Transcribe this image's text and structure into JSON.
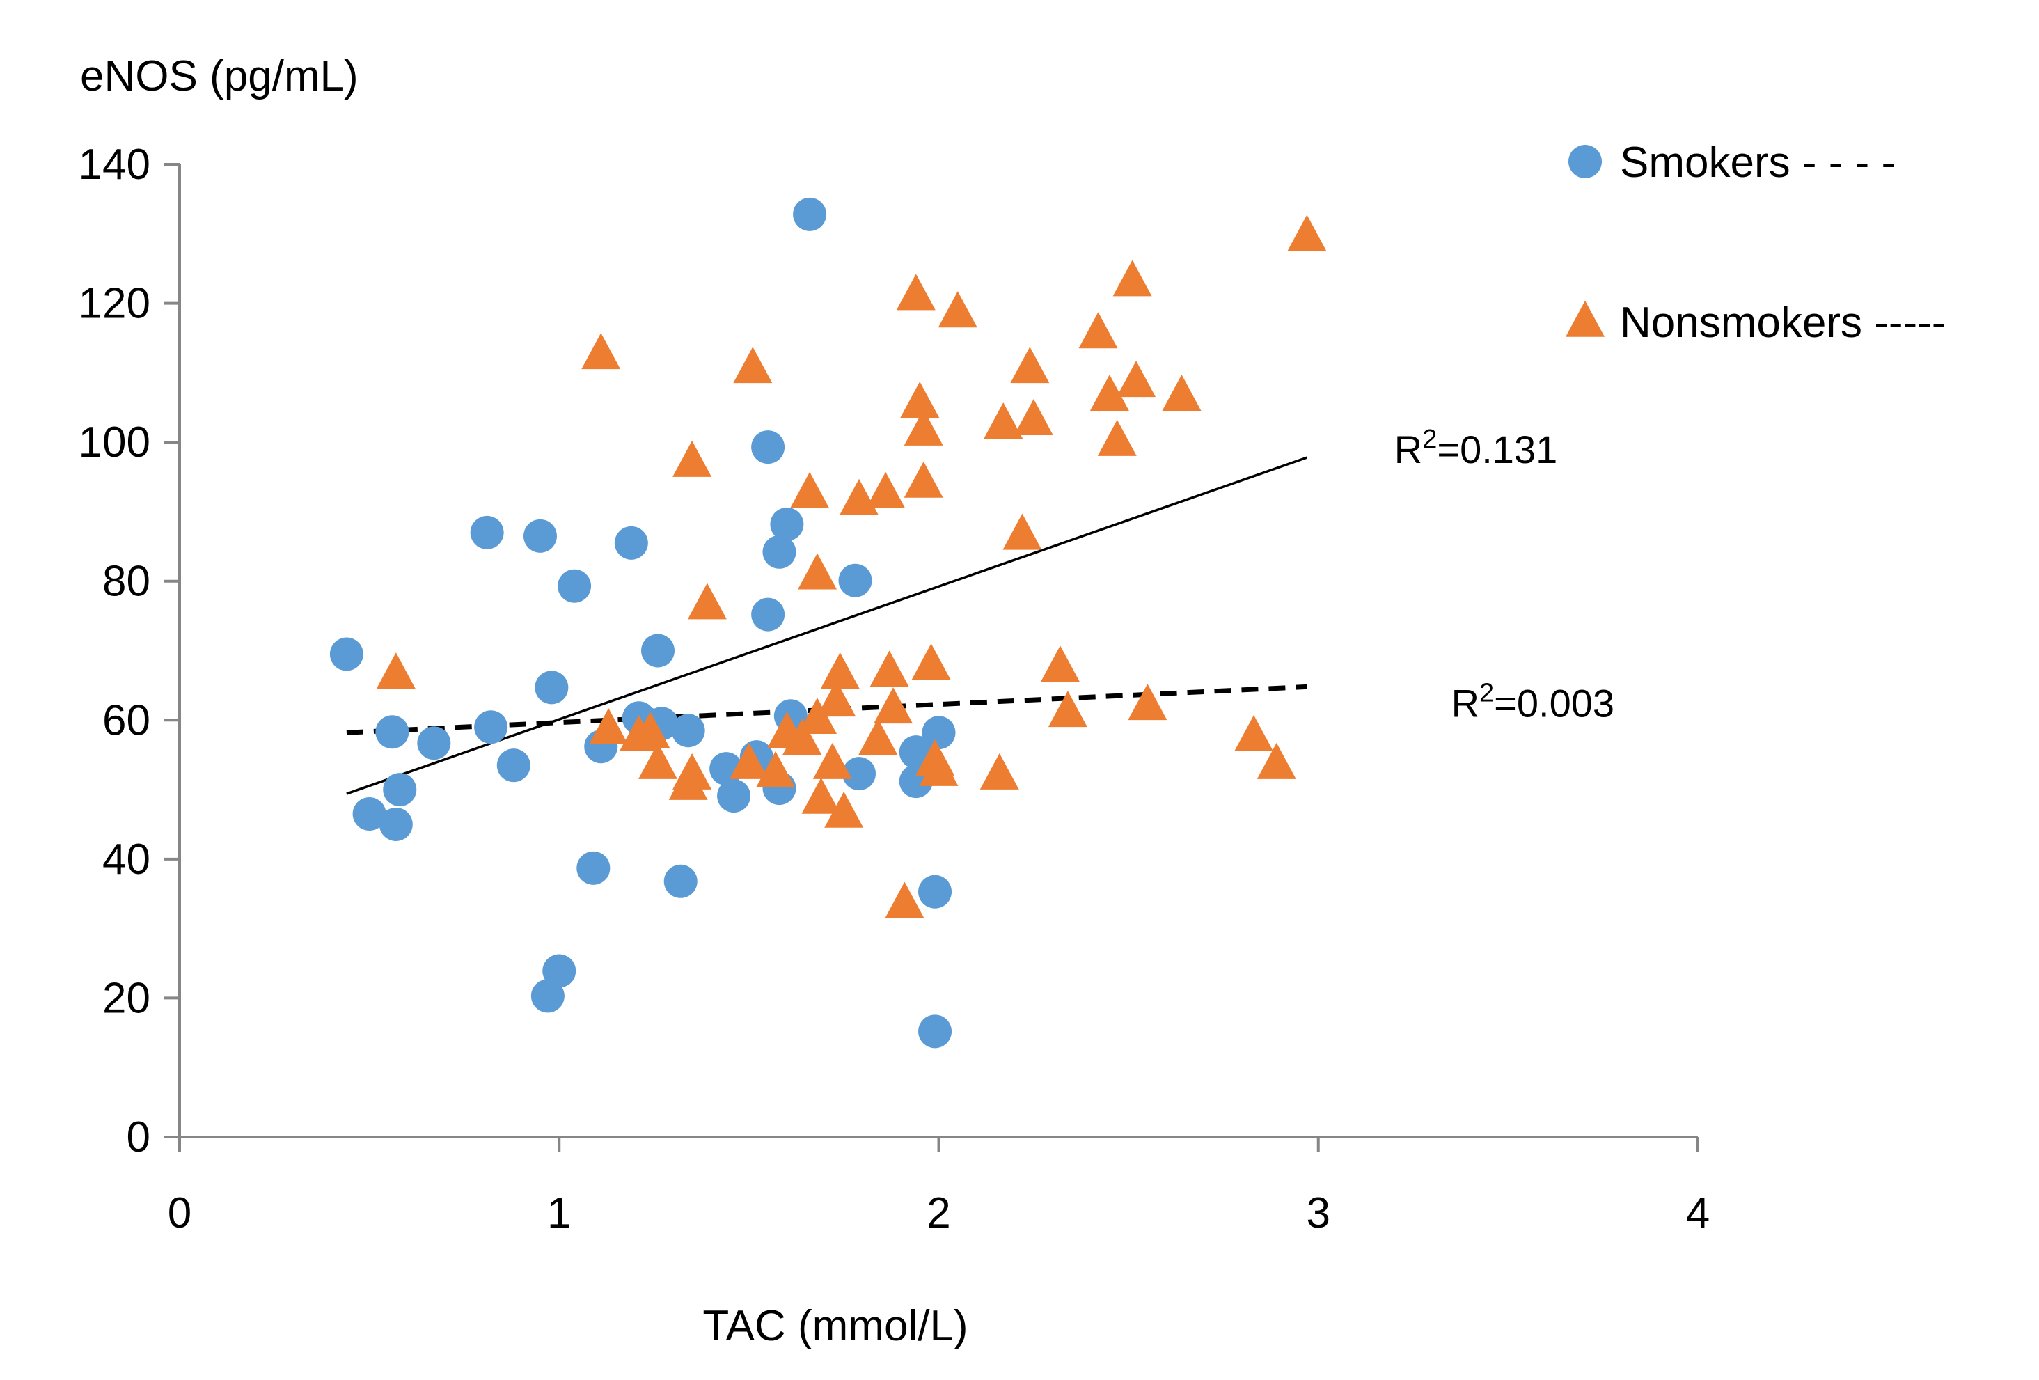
{
  "chart_data": {
    "type": "scatter",
    "title": "",
    "ylabel": "eNOS (pg/mL)",
    "xlabel": "TAC (mmol/L)",
    "xlim": [
      0,
      4
    ],
    "ylim": [
      0,
      140
    ],
    "x_ticks": [
      "0",
      "1",
      "2",
      "3",
      "4"
    ],
    "y_ticks": [
      "0",
      "20",
      "40",
      "60",
      "80",
      "100",
      "120",
      "140"
    ],
    "grid": false,
    "legend_position": "top-right",
    "series": [
      {
        "name": "Smokers",
        "legend_label": "Smokers - - - -",
        "marker": "circle",
        "color": "#5B9BD5",
        "points": [
          [
            0.44,
            69.5
          ],
          [
            0.5,
            46.5
          ],
          [
            0.56,
            58.3
          ],
          [
            0.57,
            45
          ],
          [
            0.58,
            50
          ],
          [
            0.67,
            56.7
          ],
          [
            0.81,
            87
          ],
          [
            0.82,
            59
          ],
          [
            0.88,
            53.5
          ],
          [
            0.95,
            86.5
          ],
          [
            0.97,
            20.3
          ],
          [
            0.98,
            64.7
          ],
          [
            1.0,
            23.9
          ],
          [
            1.04,
            79.3
          ],
          [
            1.09,
            38.7
          ],
          [
            1.11,
            56.2
          ],
          [
            1.19,
            85.5
          ],
          [
            1.21,
            60.3
          ],
          [
            1.23,
            59.5
          ],
          [
            1.26,
            70
          ],
          [
            1.27,
            59.5
          ],
          [
            1.32,
            36.8
          ],
          [
            1.34,
            58.5
          ],
          [
            1.44,
            53
          ],
          [
            1.46,
            49.1
          ],
          [
            1.52,
            54.7
          ],
          [
            1.55,
            75.2
          ],
          [
            1.55,
            99.3
          ],
          [
            1.58,
            50.2
          ],
          [
            1.58,
            84.2
          ],
          [
            1.6,
            88.2
          ],
          [
            1.61,
            60.6
          ],
          [
            1.66,
            132.8
          ],
          [
            1.78,
            80.1
          ],
          [
            1.79,
            52.3
          ],
          [
            1.94,
            55.4
          ],
          [
            1.94,
            51.2
          ],
          [
            1.99,
            35.3
          ],
          [
            1.99,
            15.2
          ],
          [
            2.0,
            58.2
          ]
        ]
      },
      {
        "name": "Nonsmokers",
        "legend_label": "Nonsmokers -----",
        "marker": "triangle",
        "color": "#ED7D31",
        "points": [
          [
            0.57,
            66.5
          ],
          [
            1.11,
            112.5
          ],
          [
            1.13,
            58.5
          ],
          [
            1.21,
            57.5
          ],
          [
            1.24,
            58
          ],
          [
            1.26,
            53.5
          ],
          [
            1.34,
            50.5
          ],
          [
            1.35,
            52
          ],
          [
            1.35,
            97
          ],
          [
            1.39,
            76.5
          ],
          [
            1.5,
            53.5
          ],
          [
            1.51,
            110.5
          ],
          [
            1.57,
            52.3
          ],
          [
            1.6,
            58
          ],
          [
            1.64,
            57
          ],
          [
            1.66,
            92.5
          ],
          [
            1.68,
            80.8
          ],
          [
            1.68,
            60
          ],
          [
            1.69,
            48.5
          ],
          [
            1.72,
            53.5
          ],
          [
            1.73,
            62.5
          ],
          [
            1.74,
            66.5
          ],
          [
            1.75,
            46.5
          ],
          [
            1.79,
            91.5
          ],
          [
            1.84,
            57
          ],
          [
            1.86,
            92.5
          ],
          [
            1.87,
            66.8
          ],
          [
            1.88,
            61.5
          ],
          [
            1.91,
            33.5
          ],
          [
            1.94,
            121
          ],
          [
            1.95,
            105.5
          ],
          [
            1.96,
            101.5
          ],
          [
            1.96,
            94
          ],
          [
            1.98,
            67.8
          ],
          [
            1.99,
            54
          ],
          [
            2.0,
            52.5
          ],
          [
            2.05,
            118.5
          ],
          [
            2.16,
            52
          ],
          [
            2.17,
            102.5
          ],
          [
            2.22,
            86.5
          ],
          [
            2.24,
            110.5
          ],
          [
            2.25,
            103
          ],
          [
            2.32,
            67.5
          ],
          [
            2.34,
            61
          ],
          [
            2.42,
            115.5
          ],
          [
            2.45,
            106.5
          ],
          [
            2.47,
            100
          ],
          [
            2.51,
            123
          ],
          [
            2.52,
            108.5
          ],
          [
            2.55,
            62
          ],
          [
            2.64,
            106.5
          ],
          [
            2.83,
            57.5
          ],
          [
            2.89,
            53.5
          ],
          [
            2.97,
            129.5
          ]
        ]
      }
    ],
    "trendlines": [
      {
        "name": "solid-trendline",
        "style": "solid",
        "x": [
          0.44,
          2.97
        ],
        "y": [
          49.4,
          97.8
        ],
        "label": "R",
        "label_sup": "2",
        "label_value": "=0.131",
        "label_at": [
          3.2,
          99
        ]
      },
      {
        "name": "dashed-trendline",
        "style": "dashed",
        "x": [
          0.44,
          2.97
        ],
        "y": [
          58.2,
          64.8
        ],
        "label": "R",
        "label_sup": "2",
        "label_value": "=0.003",
        "label_at": [
          3.35,
          62.5
        ]
      }
    ]
  }
}
